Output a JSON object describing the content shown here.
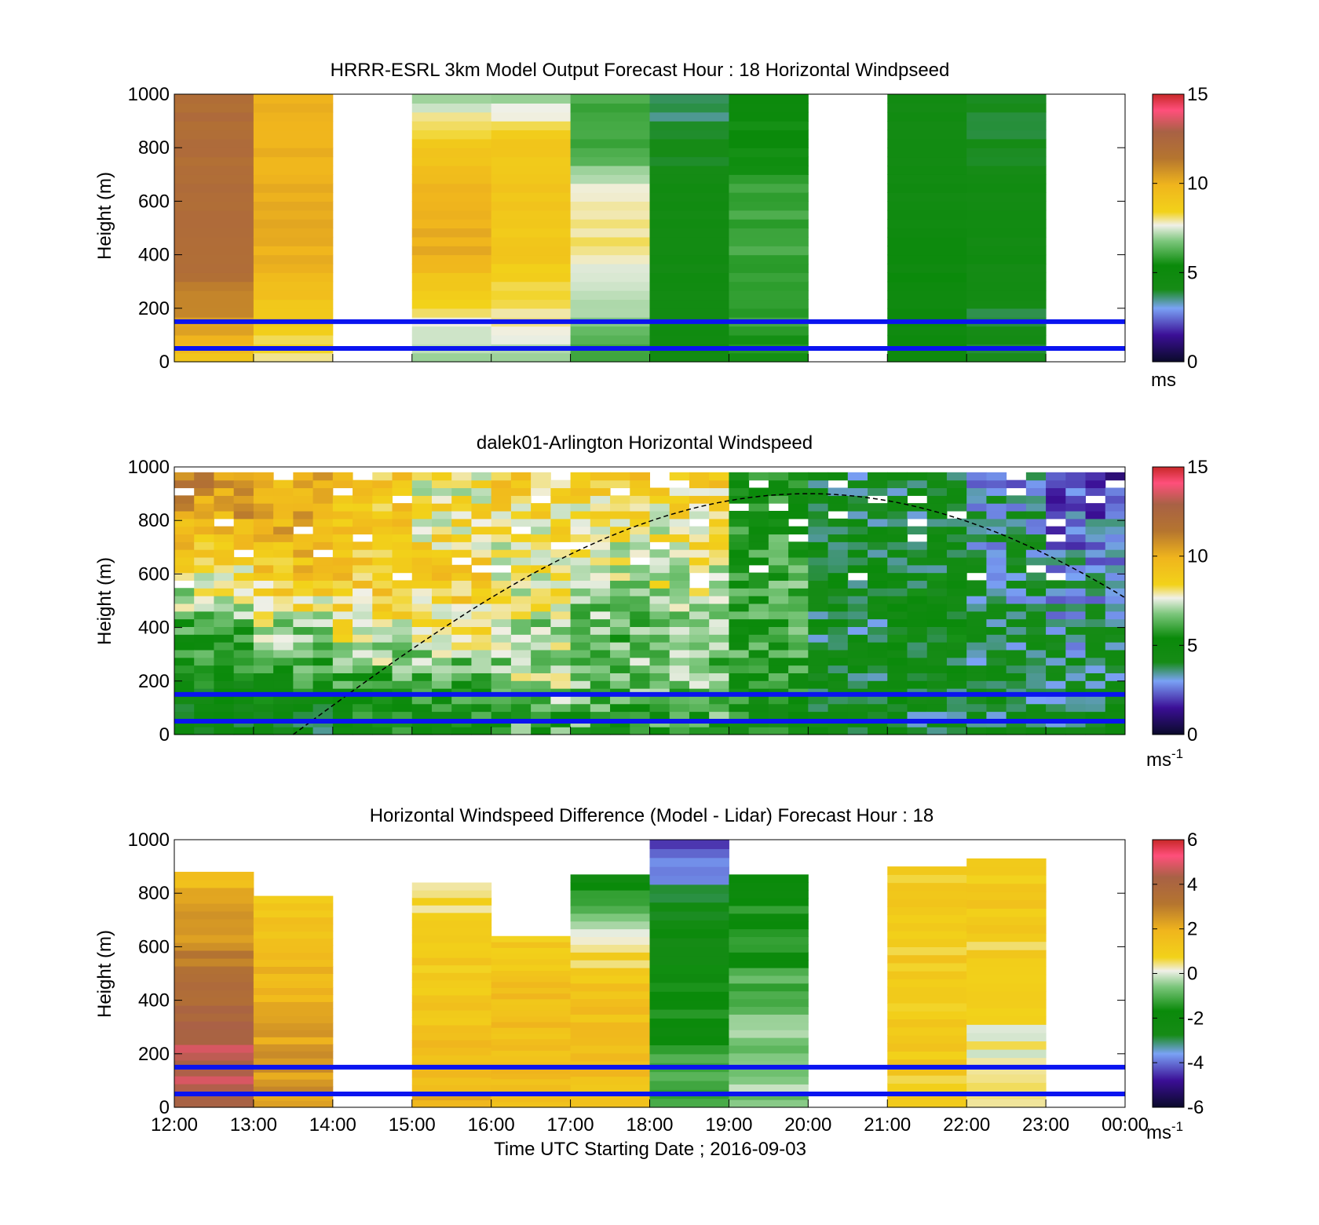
{
  "figure": {
    "xlabel": "Time UTC  Starting Date ; 2016-09-03",
    "x_ticks": [
      "12:00",
      "13:00",
      "14:00",
      "15:00",
      "16:00",
      "17:00",
      "18:00",
      "19:00",
      "20:00",
      "21:00",
      "22:00",
      "23:00",
      "00:00"
    ]
  },
  "chart_data": [
    {
      "type": "heatmap",
      "title": "HRRR-ESRL 3km Model Output   Forecast Hour : 18 Horizontal Windpseed",
      "ylabel": "Height (m)",
      "xlim": [
        12,
        24
      ],
      "ylim": [
        0,
        1000
      ],
      "y_ticks": [
        "0",
        "200",
        "400",
        "600",
        "800",
        "1000"
      ],
      "grid": false,
      "colorbar": {
        "range": [
          0,
          15
        ],
        "ticks": [
          "0",
          "5",
          "10",
          "15"
        ],
        "unit_label": "ms",
        "unit_exponent": ""
      },
      "reference_lines_height_m": [
        50,
        150
      ],
      "columns": [
        {
          "start": 12,
          "end": 13,
          "speed": [
            9,
            11,
            12,
            12,
            12,
            12
          ]
        },
        {
          "start": 13,
          "end": 14,
          "speed": [
            8,
            9,
            10,
            10,
            10,
            10
          ]
        },
        {
          "start": 15,
          "end": 16,
          "speed": [
            7,
            8,
            10,
            10,
            9,
            7
          ]
        },
        {
          "start": 16,
          "end": 17,
          "speed": [
            7,
            8,
            9,
            9,
            9,
            7
          ]
        },
        {
          "start": 17,
          "end": 18,
          "speed": [
            6,
            7,
            8,
            8,
            6,
            6
          ]
        },
        {
          "start": 18,
          "end": 19,
          "speed": [
            4.5,
            4.5,
            4.5,
            4.5,
            4,
            3.5
          ]
        },
        {
          "start": 19,
          "end": 20,
          "speed": [
            5.5,
            6,
            6,
            6,
            5.5,
            5
          ]
        },
        {
          "start": 21,
          "end": 22,
          "speed": [
            5,
            5,
            5,
            4.5,
            4.5,
            4.5
          ]
        },
        {
          "start": 22,
          "end": 23,
          "speed": [
            4,
            4,
            4.5,
            4.5,
            4,
            4
          ]
        }
      ]
    },
    {
      "type": "heatmap",
      "title": "dalek01-Arlington  Horizontal Windspeed",
      "ylabel": "Height (m)",
      "xlim": [
        12,
        24
      ],
      "ylim": [
        0,
        1000
      ],
      "y_ticks": [
        "0",
        "200",
        "400",
        "600",
        "800",
        "1000"
      ],
      "grid": false,
      "colorbar": {
        "range": [
          0,
          15
        ],
        "ticks": [
          "0",
          "5",
          "10",
          "15"
        ],
        "unit_label": "ms",
        "unit_exponent": "-1"
      },
      "reference_lines_height_m": [
        50,
        150
      ],
      "curve_peak": {
        "x": 20,
        "y": 900
      },
      "columns": [
        {
          "hour": 12,
          "speed": [
            4,
            5,
            6,
            8,
            10,
            11
          ]
        },
        {
          "hour": 13,
          "speed": [
            4,
            5.5,
            7,
            9,
            10,
            10
          ]
        },
        {
          "hour": 14,
          "speed": [
            5,
            6,
            8,
            9,
            9,
            9
          ]
        },
        {
          "hour": 15,
          "speed": [
            5,
            6,
            8,
            9,
            8,
            8
          ]
        },
        {
          "hour": 16,
          "speed": [
            6,
            7,
            7,
            8,
            8,
            9
          ]
        },
        {
          "hour": 17,
          "speed": [
            6,
            6.5,
            6.5,
            7,
            8,
            9
          ]
        },
        {
          "hour": 18,
          "speed": [
            6,
            6.5,
            6.5,
            7.5,
            8,
            9
          ]
        },
        {
          "hour": 19,
          "speed": [
            5,
            5.5,
            6,
            6,
            5.5,
            5
          ]
        },
        {
          "hour": 20,
          "speed": [
            4,
            4,
            4,
            4.5,
            4,
            4
          ]
        },
        {
          "hour": 21,
          "speed": [
            4,
            4.5,
            4.5,
            4.5,
            4,
            4
          ]
        },
        {
          "hour": 22,
          "speed": [
            4,
            4,
            4,
            3.5,
            3.5,
            3
          ]
        },
        {
          "hour": 23,
          "speed": [
            4,
            4,
            3.5,
            3,
            2.5,
            2
          ]
        }
      ]
    },
    {
      "type": "heatmap",
      "title": "Horizontal Windspeed Difference (Model - Lidar) Forecast Hour : 18",
      "ylabel": "Height (m)",
      "xlim": [
        12,
        24
      ],
      "ylim": [
        0,
        1000
      ],
      "y_ticks": [
        "0",
        "200",
        "400",
        "600",
        "800",
        "1000"
      ],
      "grid": false,
      "colorbar": {
        "range": [
          -6,
          6
        ],
        "ticks": [
          "-6",
          "-4",
          "-2",
          "0",
          "2",
          "4",
          "6"
        ],
        "unit_label": "ms",
        "unit_exponent": "-1"
      },
      "reference_lines_height_m": [
        50,
        150
      ],
      "columns": [
        {
          "start": 12,
          "end": 13,
          "top": 880,
          "diff": [
            4.5,
            4.5,
            3.5,
            2.5,
            1.5
          ]
        },
        {
          "start": 13,
          "end": 14,
          "top": 790,
          "diff": [
            2.5,
            2.5,
            2,
            1.5,
            1
          ]
        },
        {
          "start": 15,
          "end": 16,
          "top": 840,
          "diff": [
            2,
            1.5,
            1,
            1,
            0.5
          ]
        },
        {
          "start": 16,
          "end": 17,
          "top": 640,
          "diff": [
            1.5,
            1.5,
            1.5,
            1
          ]
        },
        {
          "start": 17,
          "end": 18,
          "top": 870,
          "diff": [
            1.5,
            1.5,
            1.5,
            0,
            -2
          ]
        },
        {
          "start": 18,
          "end": 19,
          "top": 1000,
          "diff": [
            -1,
            -1.5,
            -2,
            -2.5,
            -5
          ]
        },
        {
          "start": 19,
          "end": 20,
          "top": 870,
          "diff": [
            -0.5,
            -0.5,
            -1,
            -1.5,
            -2
          ]
        },
        {
          "start": 21,
          "end": 22,
          "top": 900,
          "diff": [
            1,
            1,
            1,
            1,
            1
          ]
        },
        {
          "start": 22,
          "end": 23,
          "top": 930,
          "diff": [
            0.3,
            0.3,
            0.7,
            1,
            1
          ]
        }
      ]
    }
  ]
}
